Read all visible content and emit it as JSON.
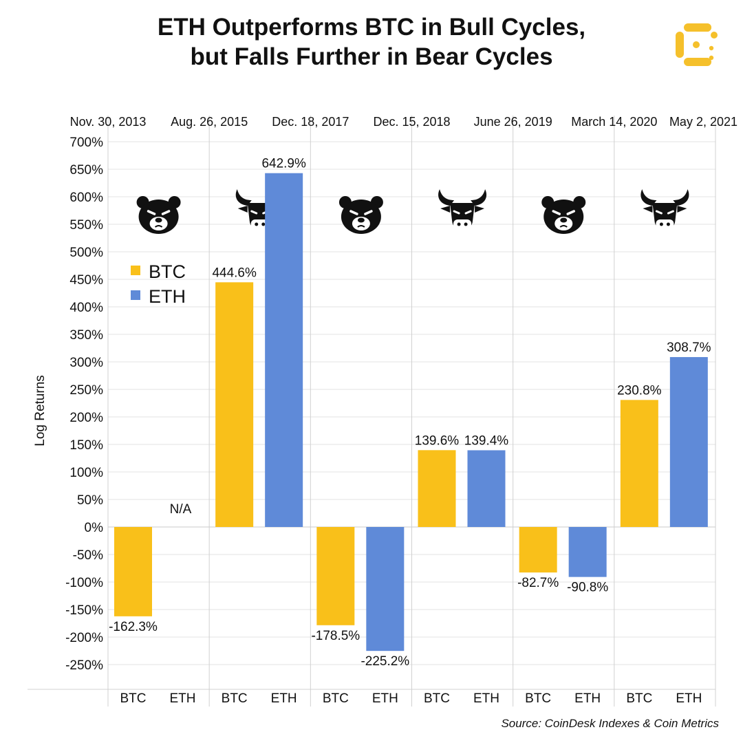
{
  "title_line1": "ETH Outperforms BTC in Bull Cycles,",
  "title_line2": "but Falls Further in Bear Cycles",
  "source": "Source: CoinDesk Indexes & Coin Metrics",
  "logo_icon": "coindesk-logo-icon",
  "colors": {
    "btc": "#F9C01A",
    "eth": "#5F8AD8",
    "grid": "#E3E3E3",
    "divider": "#D0D0D0",
    "logo": "#F5C02B"
  },
  "chart_data": {
    "type": "bar",
    "ylabel": "Log Returns",
    "ylim": [
      -300,
      700
    ],
    "yticks": [
      700,
      650,
      600,
      550,
      500,
      450,
      400,
      350,
      300,
      250,
      200,
      150,
      100,
      50,
      0,
      -50,
      -100,
      -150,
      -200,
      -250
    ],
    "ytick_suffix": "%",
    "grid": true,
    "legend_position": "upper-left",
    "series": [
      {
        "name": "BTC",
        "color": "#F9C01A"
      },
      {
        "name": "ETH",
        "color": "#5F8AD8"
      }
    ],
    "dates": [
      "Nov. 30, 2013",
      "Aug. 26, 2015",
      "Dec. 18, 2017",
      "Dec. 15, 2018",
      "June 26, 2019",
      "March 14, 2020",
      "May 2, 2021"
    ],
    "periods": [
      {
        "market": "bear",
        "bars": [
          {
            "series": "BTC",
            "value": -162.3,
            "label": "-162.3%"
          },
          {
            "series": "ETH",
            "value": null,
            "label": "N/A"
          }
        ]
      },
      {
        "market": "bull",
        "bars": [
          {
            "series": "BTC",
            "value": 444.6,
            "label": "444.6%"
          },
          {
            "series": "ETH",
            "value": 642.9,
            "label": "642.9%"
          }
        ]
      },
      {
        "market": "bear",
        "bars": [
          {
            "series": "BTC",
            "value": -178.5,
            "label": "-178.5%"
          },
          {
            "series": "ETH",
            "value": -225.2,
            "label": "-225.2%"
          }
        ]
      },
      {
        "market": "bull",
        "bars": [
          {
            "series": "BTC",
            "value": 139.6,
            "label": "139.6%"
          },
          {
            "series": "ETH",
            "value": 139.4,
            "label": "139.4%"
          }
        ]
      },
      {
        "market": "bear",
        "bars": [
          {
            "series": "BTC",
            "value": -82.7,
            "label": "-82.7%"
          },
          {
            "series": "ETH",
            "value": -90.8,
            "label": "-90.8%"
          }
        ]
      },
      {
        "market": "bull",
        "bars": [
          {
            "series": "BTC",
            "value": 230.8,
            "label": "230.8%"
          },
          {
            "series": "ETH",
            "value": 308.7,
            "label": "308.7%"
          }
        ]
      }
    ],
    "market_icons": {
      "bear": "bear-icon",
      "bull": "bull-icon"
    }
  }
}
